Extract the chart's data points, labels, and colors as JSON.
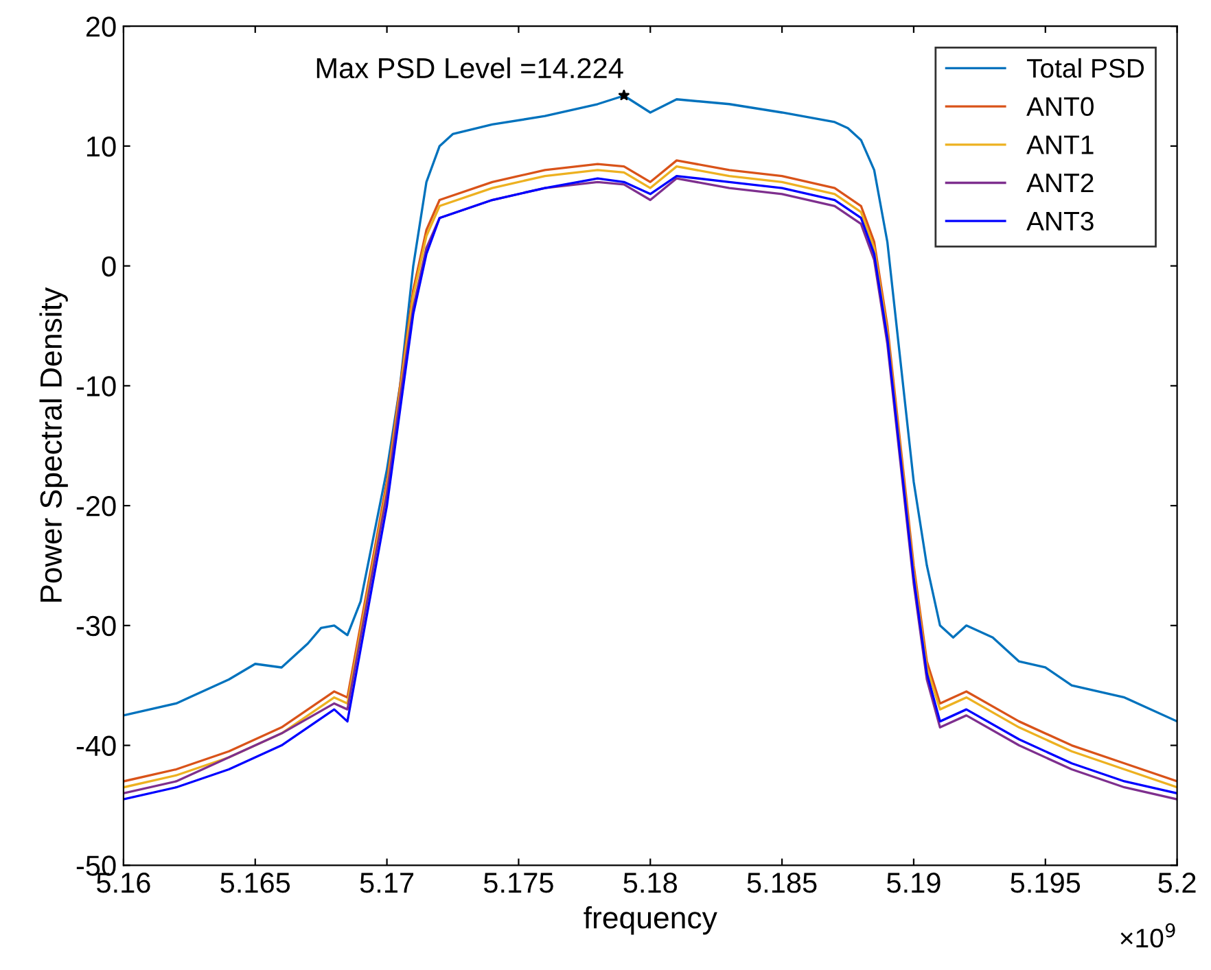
{
  "chart_data": {
    "type": "line",
    "xlabel": "frequency",
    "ylabel": "Power Spectral Density",
    "xlim": [
      5.16,
      5.2
    ],
    "xticks": [
      5.16,
      5.165,
      5.17,
      5.175,
      5.18,
      5.185,
      5.19,
      5.195,
      5.2
    ],
    "ylim": [
      -50,
      20
    ],
    "yticks": [
      -50,
      -40,
      -30,
      -20,
      -10,
      0,
      10,
      20
    ],
    "grid": false,
    "legend": "top right",
    "marker": "none",
    "line_style": "solid",
    "annotations": [
      {
        "text": "Max PSD Level =14.224",
        "x": 5.179,
        "y": 14.224
      },
      "×10$^{9}$"
    ],
    "series": [
      {
        "name": "Total PSD",
        "color": "#0072bd",
        "x": [
          5.16,
          5.162,
          5.164,
          5.165,
          5.166,
          5.167,
          5.1675,
          5.168,
          5.1685,
          5.169,
          5.17,
          5.1705,
          5.171,
          5.1715,
          5.172,
          5.1725,
          5.174,
          5.176,
          5.178,
          5.179,
          5.18,
          5.181,
          5.183,
          5.185,
          5.187,
          5.1875,
          5.188,
          5.1885,
          5.189,
          5.1895,
          5.19,
          5.1905,
          5.191,
          5.1915,
          5.192,
          5.193,
          5.194,
          5.195,
          5.196,
          5.198,
          5.2
        ],
        "values": [
          -37.5,
          -36.5,
          -34.5,
          -33.2,
          -33.5,
          -31.5,
          -30.2,
          -30,
          -30.8,
          -28,
          -17,
          -10,
          0,
          7,
          10,
          11,
          11.8,
          12.5,
          13.5,
          14.2,
          12.8,
          13.9,
          13.5,
          12.8,
          12,
          11.5,
          10.5,
          8,
          2,
          -8,
          -18,
          -25,
          -30,
          -31,
          -30,
          -31,
          -33,
          -33.5,
          -35,
          -36,
          -38
        ]
      },
      {
        "name": "ANT0",
        "color": "#d95319",
        "x": [
          5.16,
          5.162,
          5.164,
          5.166,
          5.168,
          5.1685,
          5.169,
          5.17,
          5.1705,
          5.171,
          5.1715,
          5.172,
          5.174,
          5.176,
          5.178,
          5.179,
          5.18,
          5.181,
          5.183,
          5.185,
          5.187,
          5.188,
          5.1885,
          5.189,
          5.1895,
          5.19,
          5.1905,
          5.191,
          5.192,
          5.194,
          5.196,
          5.198,
          5.2
        ],
        "values": [
          -43,
          -42,
          -40.5,
          -38.5,
          -35.5,
          -36,
          -30,
          -18,
          -10,
          -2,
          3,
          5.5,
          7,
          8,
          8.5,
          8.3,
          7,
          8.8,
          8,
          7.5,
          6.5,
          5,
          2,
          -5,
          -15,
          -25,
          -33,
          -36.5,
          -35.5,
          -38,
          -40,
          -41.5,
          -43
        ]
      },
      {
        "name": "ANT1",
        "color": "#edb120",
        "x": [
          5.16,
          5.162,
          5.164,
          5.166,
          5.168,
          5.1685,
          5.169,
          5.17,
          5.1705,
          5.171,
          5.1715,
          5.172,
          5.174,
          5.176,
          5.178,
          5.179,
          5.18,
          5.181,
          5.183,
          5.185,
          5.187,
          5.188,
          5.1885,
          5.189,
          5.1895,
          5.19,
          5.1905,
          5.191,
          5.192,
          5.194,
          5.196,
          5.198,
          5.2
        ],
        "values": [
          -43.5,
          -42.5,
          -41,
          -39,
          -36,
          -36.5,
          -30.5,
          -18.5,
          -10.5,
          -2.5,
          2.5,
          5,
          6.5,
          7.5,
          8,
          7.8,
          6.5,
          8.3,
          7.5,
          7,
          6,
          4.5,
          1.5,
          -5.5,
          -15.5,
          -25.5,
          -33.5,
          -37,
          -36,
          -38.5,
          -40.5,
          -42,
          -43.5
        ]
      },
      {
        "name": "ANT2",
        "color": "#7e2f8e",
        "x": [
          5.16,
          5.162,
          5.164,
          5.166,
          5.168,
          5.1685,
          5.169,
          5.17,
          5.1705,
          5.171,
          5.1715,
          5.172,
          5.174,
          5.176,
          5.178,
          5.179,
          5.18,
          5.181,
          5.183,
          5.185,
          5.187,
          5.188,
          5.1885,
          5.189,
          5.1895,
          5.19,
          5.1905,
          5.191,
          5.192,
          5.194,
          5.196,
          5.198,
          5.2
        ],
        "values": [
          -44,
          -43,
          -41,
          -39,
          -36.5,
          -37,
          -31,
          -19,
          -11,
          -3.5,
          1.5,
          4,
          5.5,
          6.5,
          7,
          6.8,
          5.5,
          7.3,
          6.5,
          6,
          5,
          3.5,
          0.5,
          -6.5,
          -16.5,
          -26.5,
          -34.5,
          -38.5,
          -37.5,
          -40,
          -42,
          -43.5,
          -44.5
        ]
      },
      {
        "name": "ANT3",
        "color": "#0000ff",
        "x": [
          5.16,
          5.162,
          5.164,
          5.166,
          5.168,
          5.1685,
          5.169,
          5.17,
          5.1705,
          5.171,
          5.1715,
          5.172,
          5.174,
          5.176,
          5.178,
          5.179,
          5.18,
          5.181,
          5.183,
          5.185,
          5.187,
          5.188,
          5.1885,
          5.189,
          5.1895,
          5.19,
          5.1905,
          5.191,
          5.192,
          5.194,
          5.196,
          5.198,
          5.2
        ],
        "values": [
          -44.5,
          -43.5,
          -42,
          -40,
          -37,
          -38,
          -32,
          -20,
          -12,
          -4,
          1,
          4,
          5.5,
          6.5,
          7.3,
          7,
          6,
          7.5,
          7,
          6.5,
          5.5,
          4,
          1,
          -6,
          -16,
          -26,
          -34,
          -38,
          -37,
          -39.5,
          -41.5,
          -43,
          -44
        ]
      },
      {
        "type": "scatter",
        "marker": "star",
        "color": "#000000",
        "x": [
          5.179
        ],
        "values": [
          14.224
        ]
      }
    ]
  }
}
